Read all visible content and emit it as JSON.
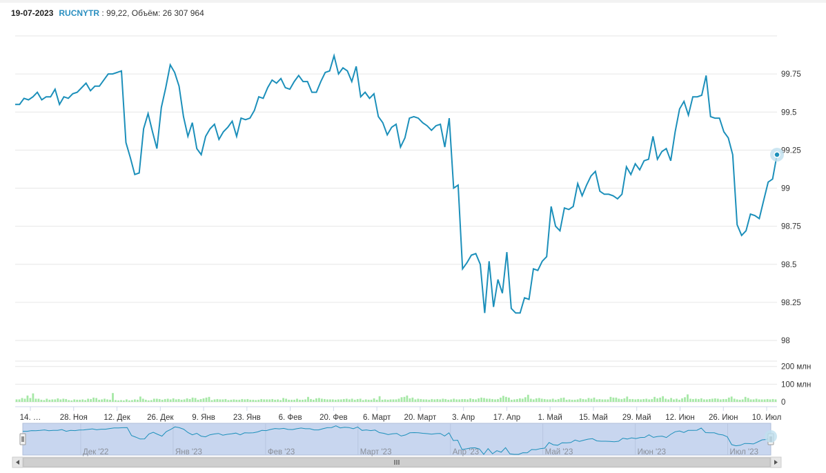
{
  "header": {
    "date": "19-07-2023",
    "ticker": "RUCNYTR",
    "sep": " : ",
    "value": "99,22",
    "volume_label": ", Объём: ",
    "volume_value": "26 307 964"
  },
  "colors": {
    "line": "#1b8fba",
    "volume": "#a6e8a6",
    "navigator_fill": "#c8d6ef",
    "grid": "#e6e6e6"
  },
  "chart_data": {
    "type": "line",
    "title": "",
    "xlabel": "",
    "ylabel": "",
    "ylim": [
      98,
      100
    ],
    "y_ticks": [
      "98.25",
      "98.5",
      "98.75",
      "99",
      "99.25",
      "99.5",
      "99.75",
      "98"
    ],
    "y_tick_values": [
      98.25,
      98.5,
      98.75,
      99,
      99.25,
      99.5,
      99.75,
      98
    ],
    "x_ticks": [
      "14. …",
      "28. Ноя",
      "12. Дек",
      "26. Дек",
      "9. Янв",
      "23. Янв",
      "6. Фев",
      "20. Фев",
      "6. Март",
      "20. Март",
      "3. Апр",
      "17. Апр",
      "1. Май",
      "15. Май",
      "29. Май",
      "12. Июн",
      "26. Июн",
      "10. Июл"
    ],
    "series": [
      {
        "values": [
          99.55,
          99.55,
          99.59,
          99.58,
          99.6,
          99.63,
          99.58,
          99.6,
          99.6,
          99.65,
          99.55,
          99.6,
          99.59,
          99.62,
          99.63,
          99.66,
          99.69,
          99.64,
          99.67,
          99.67,
          99.71,
          99.75,
          99.75,
          99.76,
          99.77,
          99.3,
          99.2,
          99.09,
          99.1,
          99.39,
          99.49,
          99.37,
          99.26,
          99.53,
          99.66,
          99.81,
          99.76,
          99.67,
          99.47,
          99.34,
          99.43,
          99.26,
          99.22,
          99.34,
          99.39,
          99.42,
          99.32,
          99.37,
          99.4,
          99.44,
          99.34,
          99.46,
          99.45,
          99.46,
          99.51,
          99.6,
          99.59,
          99.66,
          99.71,
          99.69,
          99.72,
          99.66,
          99.65,
          99.7,
          99.74,
          99.7,
          99.7,
          99.63,
          99.63,
          99.7,
          99.76,
          99.77,
          99.87,
          99.75,
          99.79,
          99.77,
          99.7,
          99.8,
          99.6,
          99.63,
          99.59,
          99.62,
          99.47,
          99.43,
          99.35,
          99.4,
          99.42,
          99.27,
          99.33,
          99.46,
          99.47,
          99.46,
          99.43,
          99.41,
          99.38,
          99.41,
          99.42,
          99.27,
          99.46,
          99.0,
          99.02,
          98.47,
          98.51,
          98.56,
          98.57,
          98.5,
          98.18,
          98.52,
          98.22,
          98.4,
          98.31,
          98.58,
          98.21,
          98.18,
          98.18,
          98.28,
          98.27,
          98.47,
          98.46,
          98.52,
          98.55,
          98.88,
          98.75,
          98.72,
          98.87,
          98.86,
          98.88,
          99.03,
          98.95,
          99.02,
          99.08,
          99.11,
          98.98,
          98.96,
          98.96,
          98.95,
          98.93,
          98.96,
          99.14,
          99.09,
          99.16,
          99.12,
          99.18,
          99.19,
          99.34,
          99.19,
          99.24,
          99.26,
          99.18,
          99.37,
          99.52,
          99.57,
          99.48,
          99.6,
          99.6,
          99.61,
          99.74,
          99.47,
          99.46,
          99.46,
          99.37,
          99.33,
          99.22,
          98.76,
          98.69,
          98.72,
          98.83,
          98.82,
          98.8,
          98.92,
          99.04,
          99.06,
          99.22
        ]
      }
    ],
    "last_point": {
      "label": "19-07-2023",
      "value": 99.22
    },
    "volume": {
      "ticks": [
        "0",
        "100 млн",
        "200 млн"
      ],
      "tick_values": [
        0,
        100,
        200
      ],
      "unit": "млн",
      "values": [
        14,
        14,
        22,
        18,
        36,
        22,
        48,
        18,
        18,
        12,
        10,
        18,
        12,
        14,
        14,
        20,
        14,
        18,
        16,
        10,
        8,
        14,
        12,
        12,
        14,
        10,
        18,
        16,
        24,
        22,
        12,
        14,
        18,
        14,
        12,
        50,
        10,
        8,
        10,
        8,
        14,
        8,
        10,
        14,
        12,
        30,
        18,
        12,
        8,
        10,
        18,
        18,
        16,
        12,
        16,
        18,
        14,
        20,
        14,
        16,
        12,
        14,
        20,
        16,
        24,
        22,
        12,
        16,
        20,
        24,
        28,
        10,
        14,
        16,
        14,
        14,
        16,
        10,
        12,
        14,
        12,
        12,
        16,
        14,
        16,
        12,
        12,
        10,
        12,
        16,
        14,
        14,
        14,
        16,
        12,
        14,
        10,
        22,
        18,
        12,
        12,
        12,
        18,
        12,
        12,
        14,
        28,
        16,
        12,
        20,
        22,
        18,
        16,
        14,
        14,
        14,
        12,
        14,
        14,
        16,
        18,
        14,
        18,
        12,
        16,
        18,
        10,
        14,
        12,
        12,
        20,
        12,
        32,
        12,
        14,
        12,
        14,
        14,
        14,
        18,
        26,
        28,
        36,
        20,
        24,
        14,
        18,
        16,
        14,
        14,
        12,
        16,
        14,
        16,
        14,
        18,
        16,
        12,
        14,
        18,
        14,
        14,
        16,
        16,
        14,
        20,
        16,
        14,
        20,
        24,
        22,
        18,
        18,
        16,
        14,
        16,
        24,
        34,
        28,
        24,
        12,
        14,
        16,
        20,
        18,
        26,
        40,
        18,
        14,
        20,
        22,
        18,
        16,
        14,
        14,
        18,
        12,
        16,
        22,
        24,
        12,
        14,
        12,
        12,
        14,
        20,
        16,
        14,
        22,
        18,
        24,
        14,
        16,
        14,
        14,
        14,
        28,
        24,
        24,
        18,
        16,
        20,
        30,
        16,
        16,
        14,
        16,
        14,
        16,
        18,
        14,
        16,
        28,
        20,
        24,
        32,
        18,
        14,
        22,
        14,
        18,
        12,
        20,
        26,
        42,
        18,
        16,
        18,
        16,
        20,
        14,
        14,
        16,
        18,
        20,
        18,
        14,
        16,
        16,
        24,
        30,
        18,
        14,
        12,
        14,
        28,
        22,
        14,
        14,
        18,
        14,
        14,
        14,
        16,
        14,
        16,
        14
      ]
    },
    "navigator": {
      "labels": [
        "Дек '22",
        "Янв '23",
        "Фев '23",
        "Март '23",
        "Апр '23",
        "Май '23",
        "Июн '23",
        "Июл '23"
      ]
    }
  }
}
